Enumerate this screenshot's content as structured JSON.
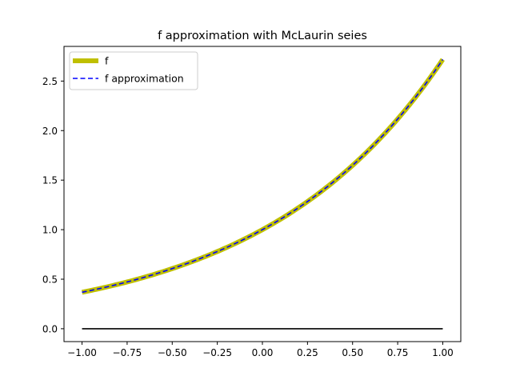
{
  "chart_data": {
    "type": "line",
    "title": "f approximation with McLaurin seies",
    "xlabel": "",
    "ylabel": "",
    "xlim": [
      -1.1,
      1.1
    ],
    "ylim": [
      -0.13,
      2.85
    ],
    "x_ticks": [
      -1.0,
      -0.75,
      -0.5,
      -0.25,
      0.0,
      0.25,
      0.5,
      0.75,
      1.0
    ],
    "x_tick_labels": [
      "−1.00",
      "−0.75",
      "−0.50",
      "−0.25",
      "0.00",
      "0.25",
      "0.50",
      "0.75",
      "1.00"
    ],
    "y_ticks": [
      0.0,
      0.5,
      1.0,
      1.5,
      2.0,
      2.5
    ],
    "y_tick_labels": [
      "0.0",
      "0.5",
      "1.0",
      "1.5",
      "2.0",
      "2.5"
    ],
    "grid": false,
    "legend_position": "top-left",
    "series": [
      {
        "name": "f",
        "color": "#bfbf00",
        "style": "solid-thick",
        "x": [
          -1.0,
          -0.75,
          -0.5,
          -0.25,
          0.0,
          0.25,
          0.5,
          0.75,
          1.0
        ],
        "values": [
          0.368,
          0.472,
          0.607,
          0.779,
          1.0,
          1.284,
          1.649,
          2.117,
          2.718
        ]
      },
      {
        "name": "f approximation",
        "color": "#0000ff",
        "style": "dashed",
        "x": [
          -1.0,
          -0.75,
          -0.5,
          -0.25,
          0.0,
          0.25,
          0.5,
          0.75,
          1.0
        ],
        "values": [
          0.368,
          0.472,
          0.607,
          0.779,
          1.0,
          1.284,
          1.649,
          2.117,
          2.718
        ]
      },
      {
        "color": "#000000",
        "style": "solid",
        "x": [
          -1.0,
          1.0
        ],
        "values": [
          0.0,
          0.0
        ]
      }
    ]
  }
}
